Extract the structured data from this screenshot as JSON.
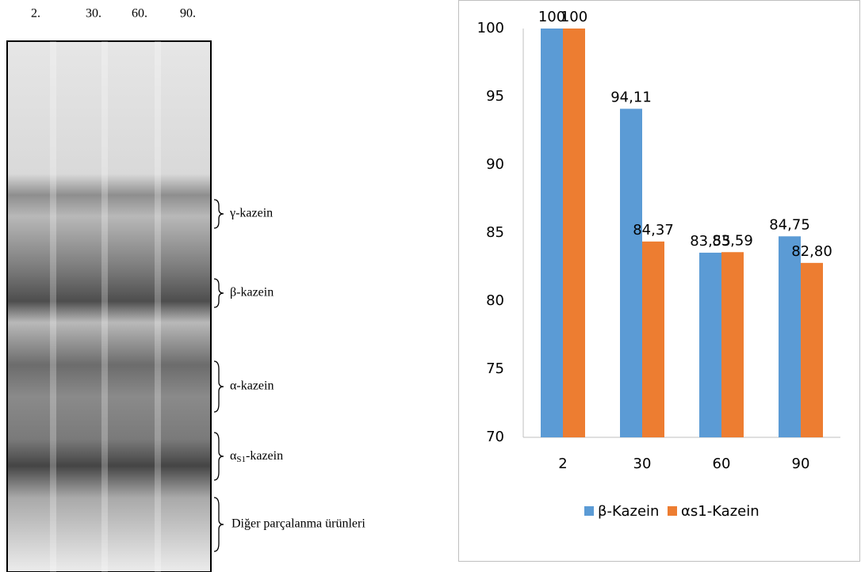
{
  "gel": {
    "lanes": [
      "2.",
      "30.",
      "60.",
      "90."
    ],
    "bands": {
      "gamma": "γ-kazein",
      "beta": "β-kazein",
      "alpha": "α-kazein",
      "alpha_s1": {
        "symbol": "α",
        "subscript": "S1",
        "suffix": "-kazein"
      },
      "other": "Diğer parçalanma ürünleri"
    }
  },
  "chart_data": {
    "type": "bar",
    "categories": [
      "2",
      "30",
      "60",
      "90"
    ],
    "series": [
      {
        "name": "β-Kazein",
        "color": "#5b9bd5",
        "values": [
          100,
          94.11,
          83.55,
          84.75
        ],
        "value_labels": [
          "100",
          "94,11",
          "83,55",
          "84,75"
        ]
      },
      {
        "name": "αs1-Kazein",
        "color": "#ed7d31",
        "values": [
          100,
          84.37,
          83.59,
          82.8
        ],
        "value_labels": [
          "100",
          "84,37",
          "83,59",
          "82,80"
        ]
      }
    ],
    "ylim": [
      70,
      100
    ],
    "yticks": [
      70,
      75,
      80,
      85,
      90,
      95,
      100
    ],
    "grid": false,
    "legend": "bottom"
  }
}
